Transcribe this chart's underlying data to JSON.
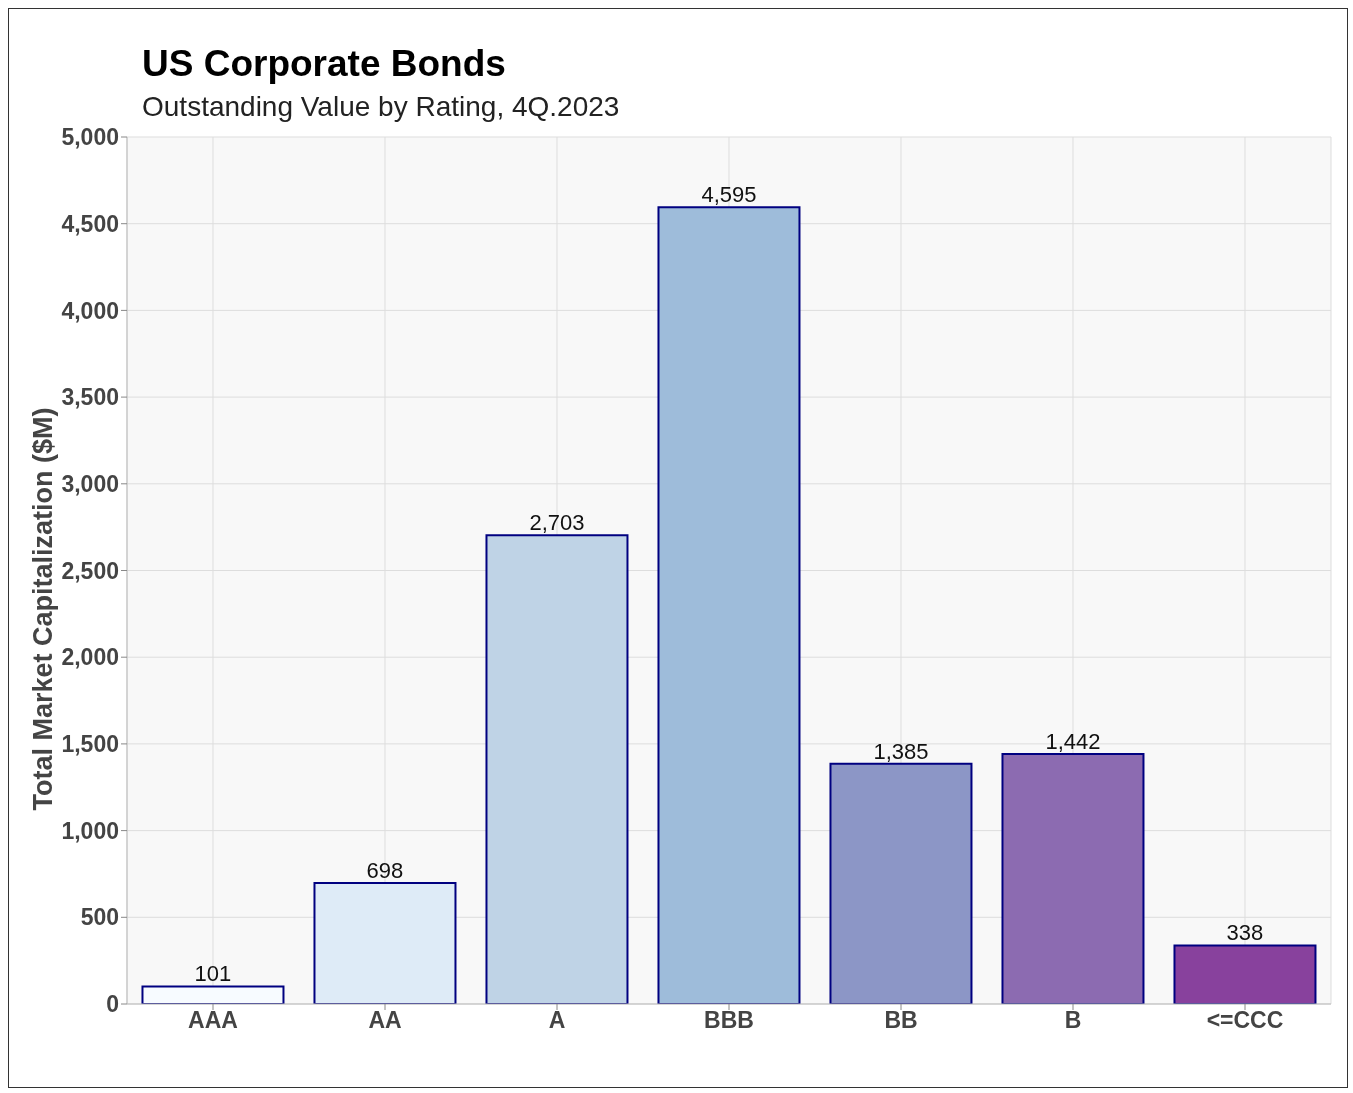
{
  "chart_data": {
    "type": "bar",
    "title": "US Corporate Bonds",
    "subtitle": "Outstanding Value by Rating, 4Q.2023",
    "ylabel": "Total Market Capitalization ($M)",
    "categories": [
      "AAA",
      "AA",
      "A",
      "BBB",
      "BB",
      "B",
      "<=CCC"
    ],
    "values": [
      101,
      698,
      2703,
      4595,
      1385,
      1442,
      338
    ],
    "value_labels": [
      "101",
      "698",
      "2,703",
      "4,595",
      "1,385",
      "1,442",
      "338"
    ],
    "colors": [
      "#f7fbff",
      "#deebf7",
      "#bfd3e6",
      "#9ebcda",
      "#8c96c6",
      "#8c6bb1",
      "#88419d"
    ],
    "ylim": [
      0,
      5000
    ],
    "yticks": [
      0,
      500,
      {
        "value": 1000,
        "label": "1,000"
      },
      {
        "value": 1500,
        "label": "1,500"
      },
      {
        "value": 2000,
        "label": "2,000"
      },
      {
        "value": 2500,
        "label": "2,500"
      },
      {
        "value": 3000,
        "label": "3,000"
      },
      {
        "value": 3500,
        "label": "3,500"
      },
      {
        "value": 4000,
        "label": "4,000"
      },
      {
        "value": 4500,
        "label": "4,500"
      },
      {
        "value": 5000,
        "label": "5,000"
      }
    ],
    "grid": true
  }
}
